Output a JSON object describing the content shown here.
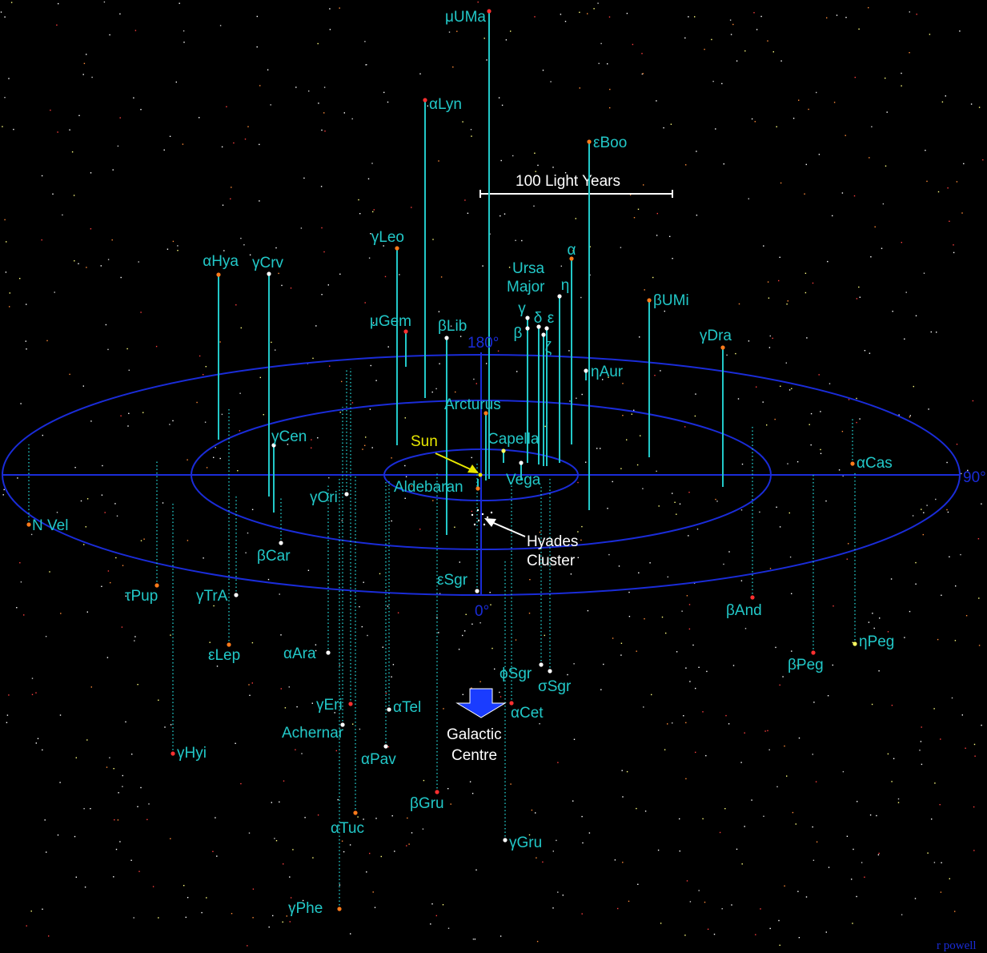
{
  "scale_bar": {
    "label": "100 Light Years"
  },
  "angles": {
    "a180": "180°",
    "a90": "90°",
    "a0": "0°"
  },
  "annotations": {
    "sun": "Sun",
    "hyades_line1": "Hyades",
    "hyades_line2": "Cluster",
    "galactic_line1": "Galactic",
    "galactic_line2": "Centre",
    "ursa_line1": "Ursa",
    "ursa_line2": "Major"
  },
  "credit": "r powell",
  "colors": {
    "background": "#000000",
    "label": "#22c8c8",
    "ring": "#1a2cd8",
    "stem": "#22c8c8",
    "arrow": "#1a3cff",
    "sun": "#e8e800"
  },
  "stars": [
    {
      "name": "μUMa",
      "color": "#ff3030"
    },
    {
      "name": "αLyn",
      "color": "#ff3030"
    },
    {
      "name": "εBoo",
      "color": "#ff7a1a"
    },
    {
      "name": "γLeo",
      "color": "#ff7a1a"
    },
    {
      "name": "αHya",
      "color": "#ff7a1a"
    },
    {
      "name": "γCrv",
      "color": "#ffffff"
    },
    {
      "name": "α",
      "color": "#ff7a1a"
    },
    {
      "name": "η",
      "color": "#ffffff"
    },
    {
      "name": "γ",
      "color": "#ffffff"
    },
    {
      "name": "δ",
      "color": "#ffffff"
    },
    {
      "name": "ε",
      "color": "#ffffff"
    },
    {
      "name": "β",
      "color": "#ffffff"
    },
    {
      "name": "ζ",
      "color": "#ffffff"
    },
    {
      "name": "βUMi",
      "color": "#ff7a1a"
    },
    {
      "name": "γDra",
      "color": "#ff7a1a"
    },
    {
      "name": "μGem",
      "color": "#ff3030"
    },
    {
      "name": "βLib",
      "color": "#ffffff"
    },
    {
      "name": "ηAur",
      "color": "#ffffff"
    },
    {
      "name": "Arcturus",
      "color": "#ff7a1a"
    },
    {
      "name": "Capella",
      "color": "#ffff60"
    },
    {
      "name": "Vega",
      "color": "#ffffff"
    },
    {
      "name": "Aldebaran",
      "color": "#ff7a1a"
    },
    {
      "name": "γCen",
      "color": "#ffffff"
    },
    {
      "name": "αCas",
      "color": "#ff7a1a"
    },
    {
      "name": "N Vel",
      "color": "#ff7a1a"
    },
    {
      "name": "γOri",
      "color": "#ffffff"
    },
    {
      "name": "βCar",
      "color": "#ffffff"
    },
    {
      "name": "εSgr",
      "color": "#ffffff"
    },
    {
      "name": "τPup",
      "color": "#ff7a1a"
    },
    {
      "name": "γTrA",
      "color": "#ffffff"
    },
    {
      "name": "βAnd",
      "color": "#ff3030"
    },
    {
      "name": "ηPeg",
      "color": "#ffff60"
    },
    {
      "name": "βPeg",
      "color": "#ff3030"
    },
    {
      "name": "εLep",
      "color": "#ff7a1a"
    },
    {
      "name": "αAra",
      "color": "#ffffff"
    },
    {
      "name": "ϕSgr",
      "color": "#ffffff"
    },
    {
      "name": "σSgr",
      "color": "#ffffff"
    },
    {
      "name": "γEri",
      "color": "#ff3030"
    },
    {
      "name": "αTel",
      "color": "#ffffff"
    },
    {
      "name": "αCet",
      "color": "#ff3030"
    },
    {
      "name": "Achernar",
      "color": "#ffffff"
    },
    {
      "name": "αPav",
      "color": "#ffffff"
    },
    {
      "name": "γHyi",
      "color": "#ff3030"
    },
    {
      "name": "βGru",
      "color": "#ff3030"
    },
    {
      "name": "αTuc",
      "color": "#ff7a1a"
    },
    {
      "name": "γGru",
      "color": "#ffffff"
    },
    {
      "name": "γPhe",
      "color": "#ff7a1a"
    }
  ]
}
